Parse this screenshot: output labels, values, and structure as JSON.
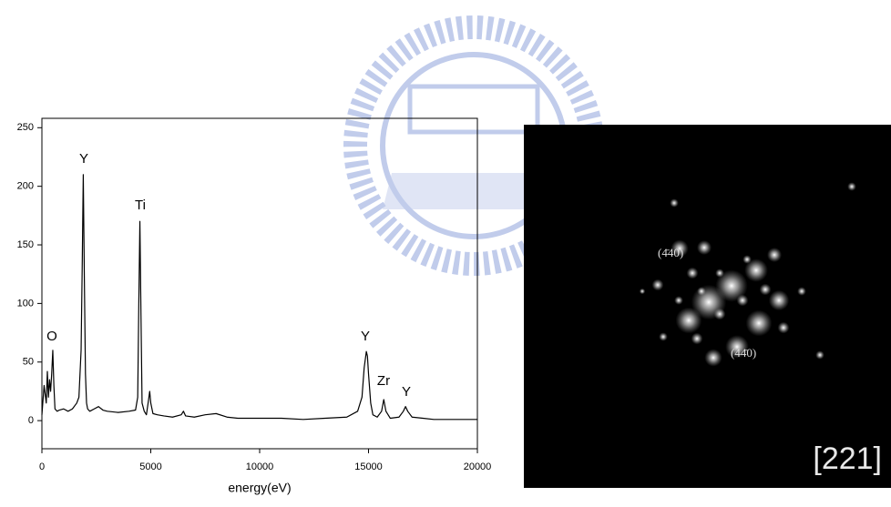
{
  "chart_data": {
    "type": "line",
    "x_label": "energy(eV)",
    "x": [
      0,
      100,
      200,
      250,
      300,
      350,
      400,
      450,
      500,
      550,
      600,
      700,
      800,
      1000,
      1200,
      1400,
      1600,
      1700,
      1800,
      1850,
      1900,
      1950,
      2000,
      2050,
      2100,
      2200,
      2400,
      2600,
      2800,
      3000,
      3500,
      4000,
      4300,
      4400,
      4450,
      4500,
      4550,
      4600,
      4700,
      4800,
      4900,
      4950,
      5000,
      5100,
      5300,
      5600,
      6000,
      6400,
      6500,
      6600,
      7000,
      7500,
      8000,
      8500,
      9000,
      10000,
      11000,
      12000,
      13000,
      14000,
      14500,
      14700,
      14800,
      14900,
      14950,
      15000,
      15100,
      15200,
      15400,
      15600,
      15700,
      15800,
      16000,
      16400,
      16600,
      16700,
      16800,
      17000,
      17500,
      18000,
      19000,
      20000
    ],
    "series": [
      {
        "color": "#000000",
        "values": [
          5,
          30,
          15,
          42,
          20,
          35,
          25,
          40,
          60,
          30,
          10,
          8,
          9,
          10,
          8,
          10,
          15,
          20,
          60,
          130,
          210,
          120,
          40,
          15,
          10,
          8,
          10,
          12,
          9,
          8,
          7,
          8,
          9,
          20,
          100,
          170,
          90,
          15,
          8,
          5,
          18,
          25,
          15,
          6,
          5,
          4,
          3,
          5,
          8,
          4,
          3,
          5,
          6,
          3,
          2,
          2,
          2,
          1,
          2,
          3,
          8,
          20,
          45,
          59,
          55,
          40,
          15,
          5,
          3,
          8,
          18,
          8,
          2,
          3,
          8,
          12,
          8,
          3,
          2,
          1,
          1,
          1
        ]
      }
    ],
    "xlim": [
      0,
      20000
    ],
    "xticks": [
      0,
      5000,
      10000,
      15000,
      20000
    ],
    "ylim": [
      -24,
      258
    ],
    "yticks": [
      0,
      50,
      100,
      150,
      200,
      250
    ],
    "annotations": [
      "O",
      "Y",
      "Ti",
      "Y",
      "Zr",
      "Y"
    ]
  },
  "diffraction_image": {
    "labels": [
      "(4̄40)",
      "(44̄0)"
    ],
    "zone_axis": "[221]"
  }
}
